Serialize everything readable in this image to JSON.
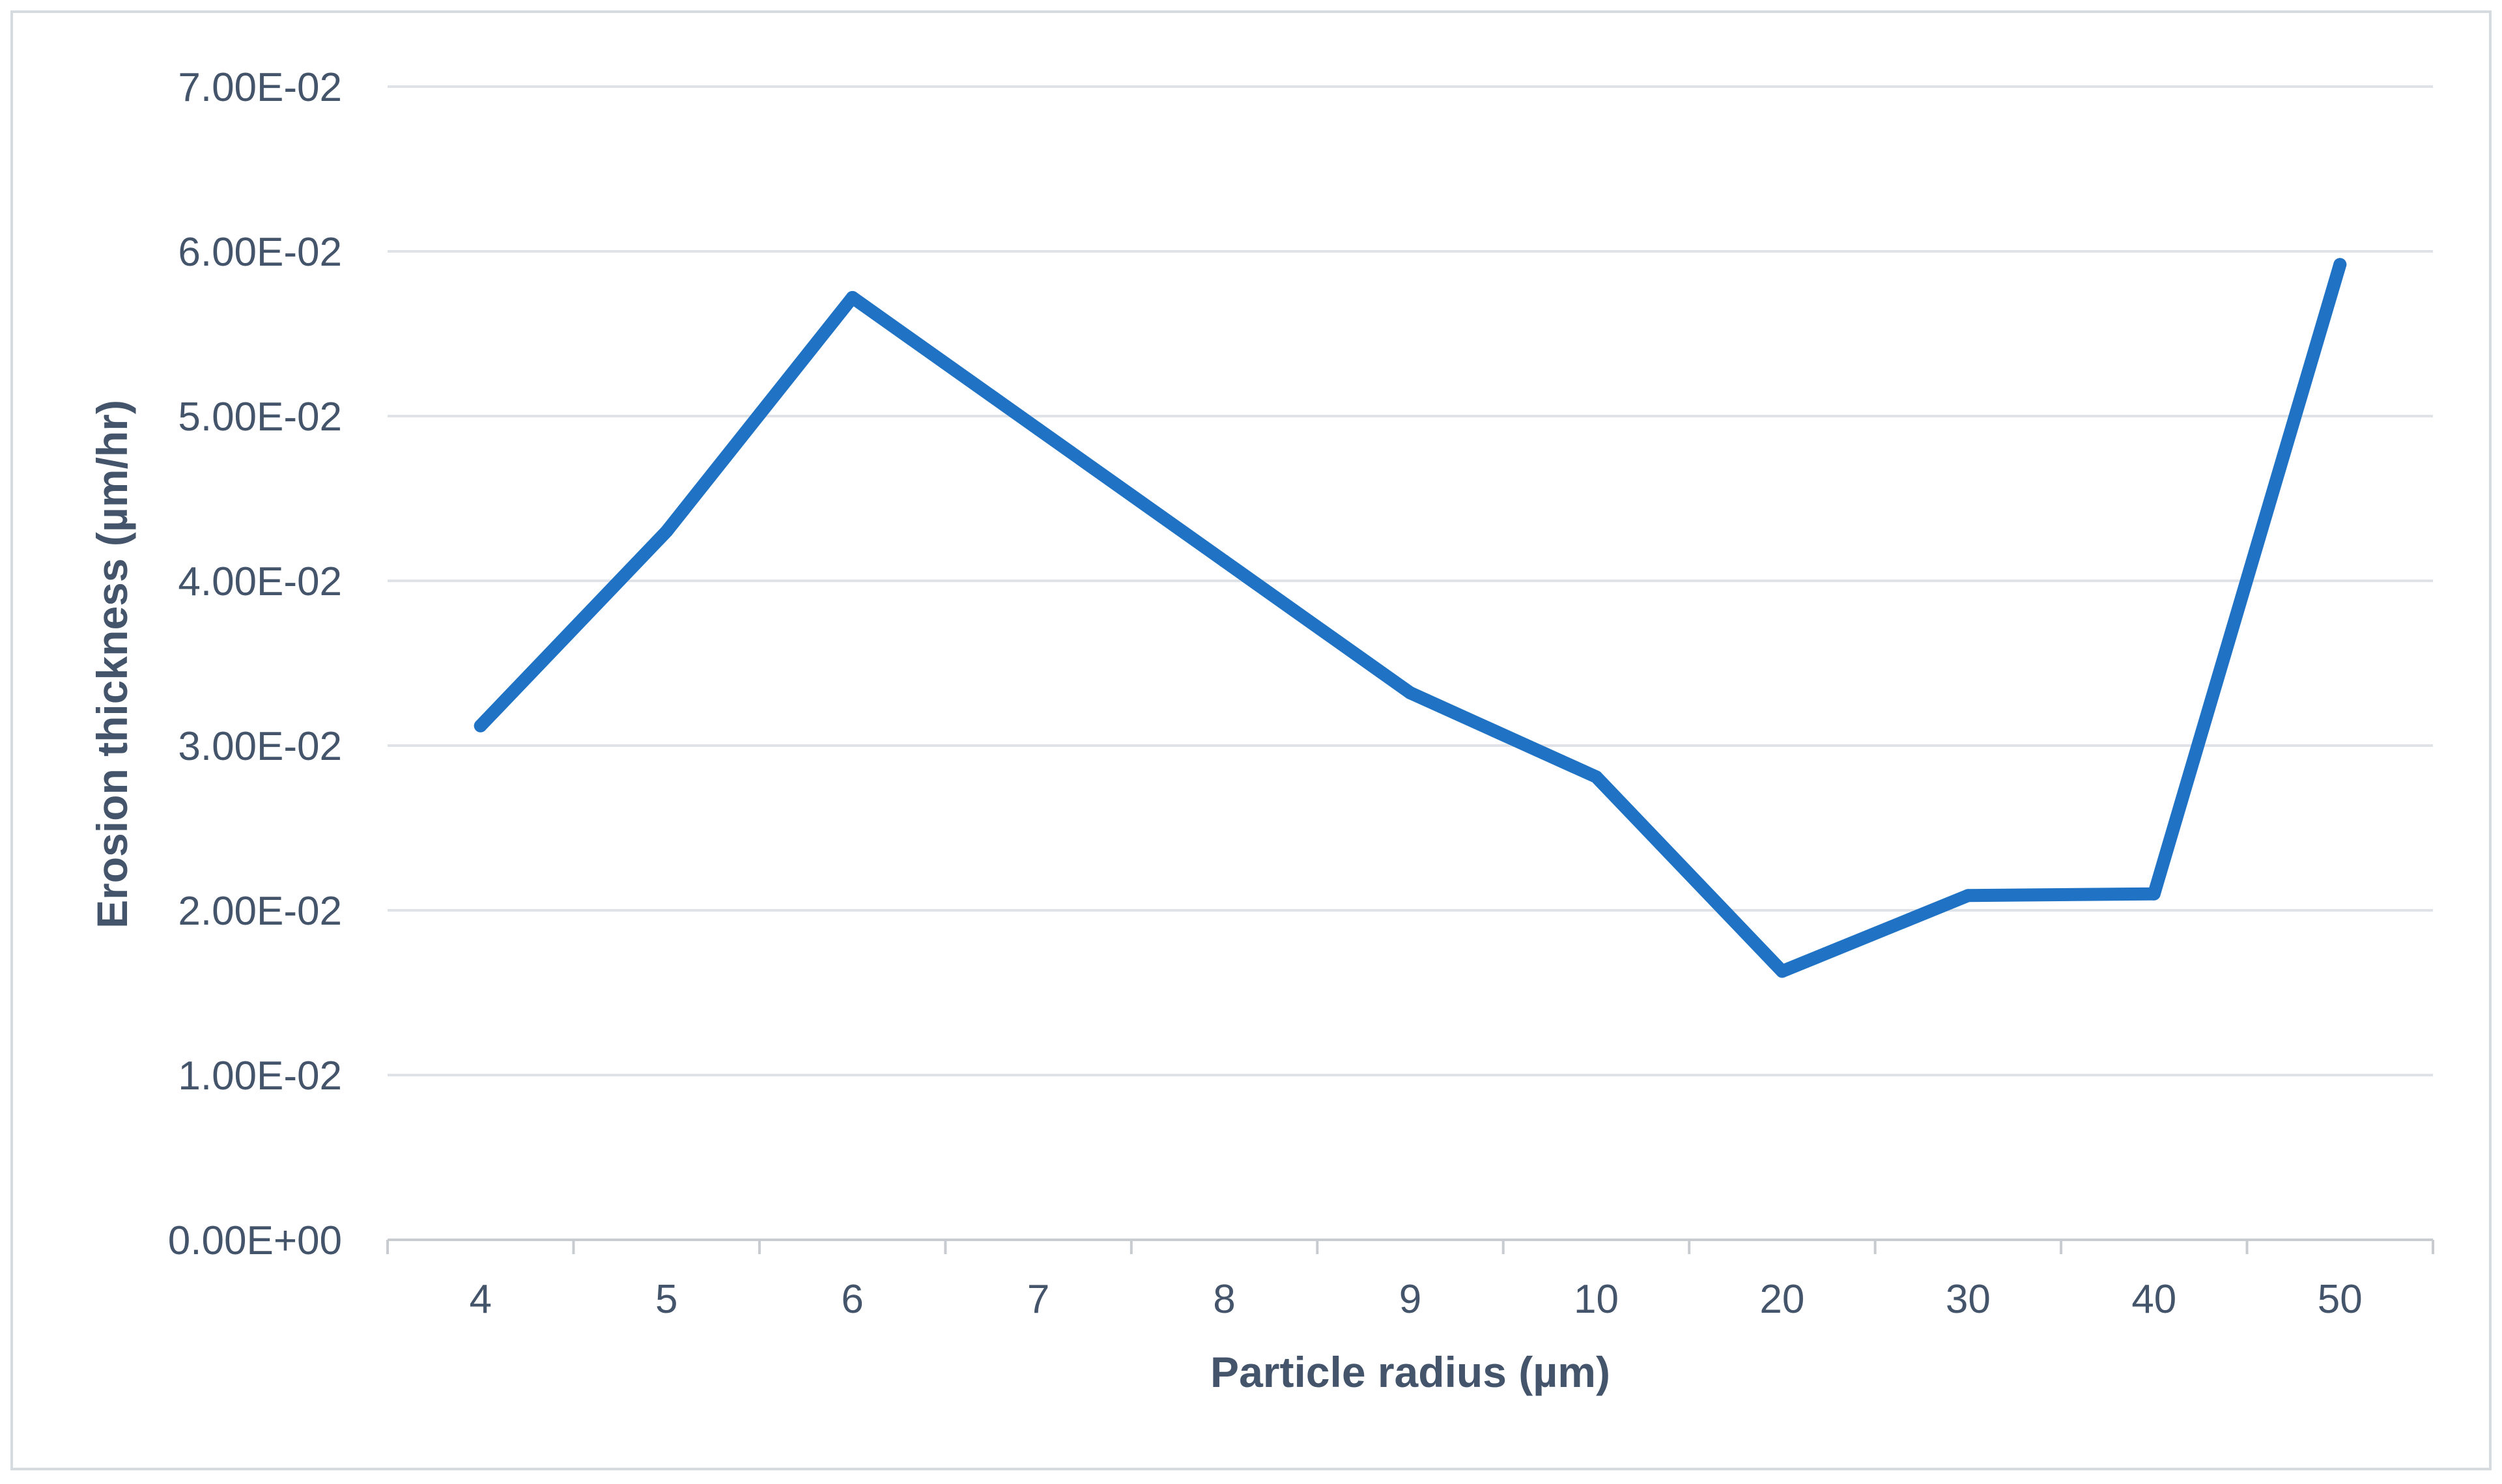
{
  "chart_data": {
    "type": "line",
    "title": "",
    "xlabel": "Particle radius (µm)",
    "ylabel": "Erosion thickness (µm/hr)",
    "categories": [
      "4",
      "5",
      "6",
      "7",
      "8",
      "9",
      "10",
      "20",
      "30",
      "40",
      "50"
    ],
    "series": [
      {
        "values": [
          0.0312,
          0.043,
          0.0572,
          0.0492,
          0.0412,
          0.0332,
          0.0281,
          0.0163,
          0.0209,
          0.021,
          0.0592
        ]
      }
    ],
    "ylim": [
      0,
      0.07
    ],
    "y_ticks": [
      0,
      0.01,
      0.02,
      0.03,
      0.04,
      0.05,
      0.06,
      0.07
    ],
    "y_tick_labels": [
      "0.00E+00",
      "1.00E-02",
      "2.00E-02",
      "3.00E-02",
      "4.00E-02",
      "5.00E-02",
      "6.00E-02",
      "7.00E-02"
    ],
    "grid": true,
    "legend": "none",
    "colors": {
      "line": "#1f72c4",
      "grid": "#dfe2e6",
      "axis": "#c8ccd1",
      "text": "#44546a",
      "frame": "#d6dbe0"
    }
  }
}
